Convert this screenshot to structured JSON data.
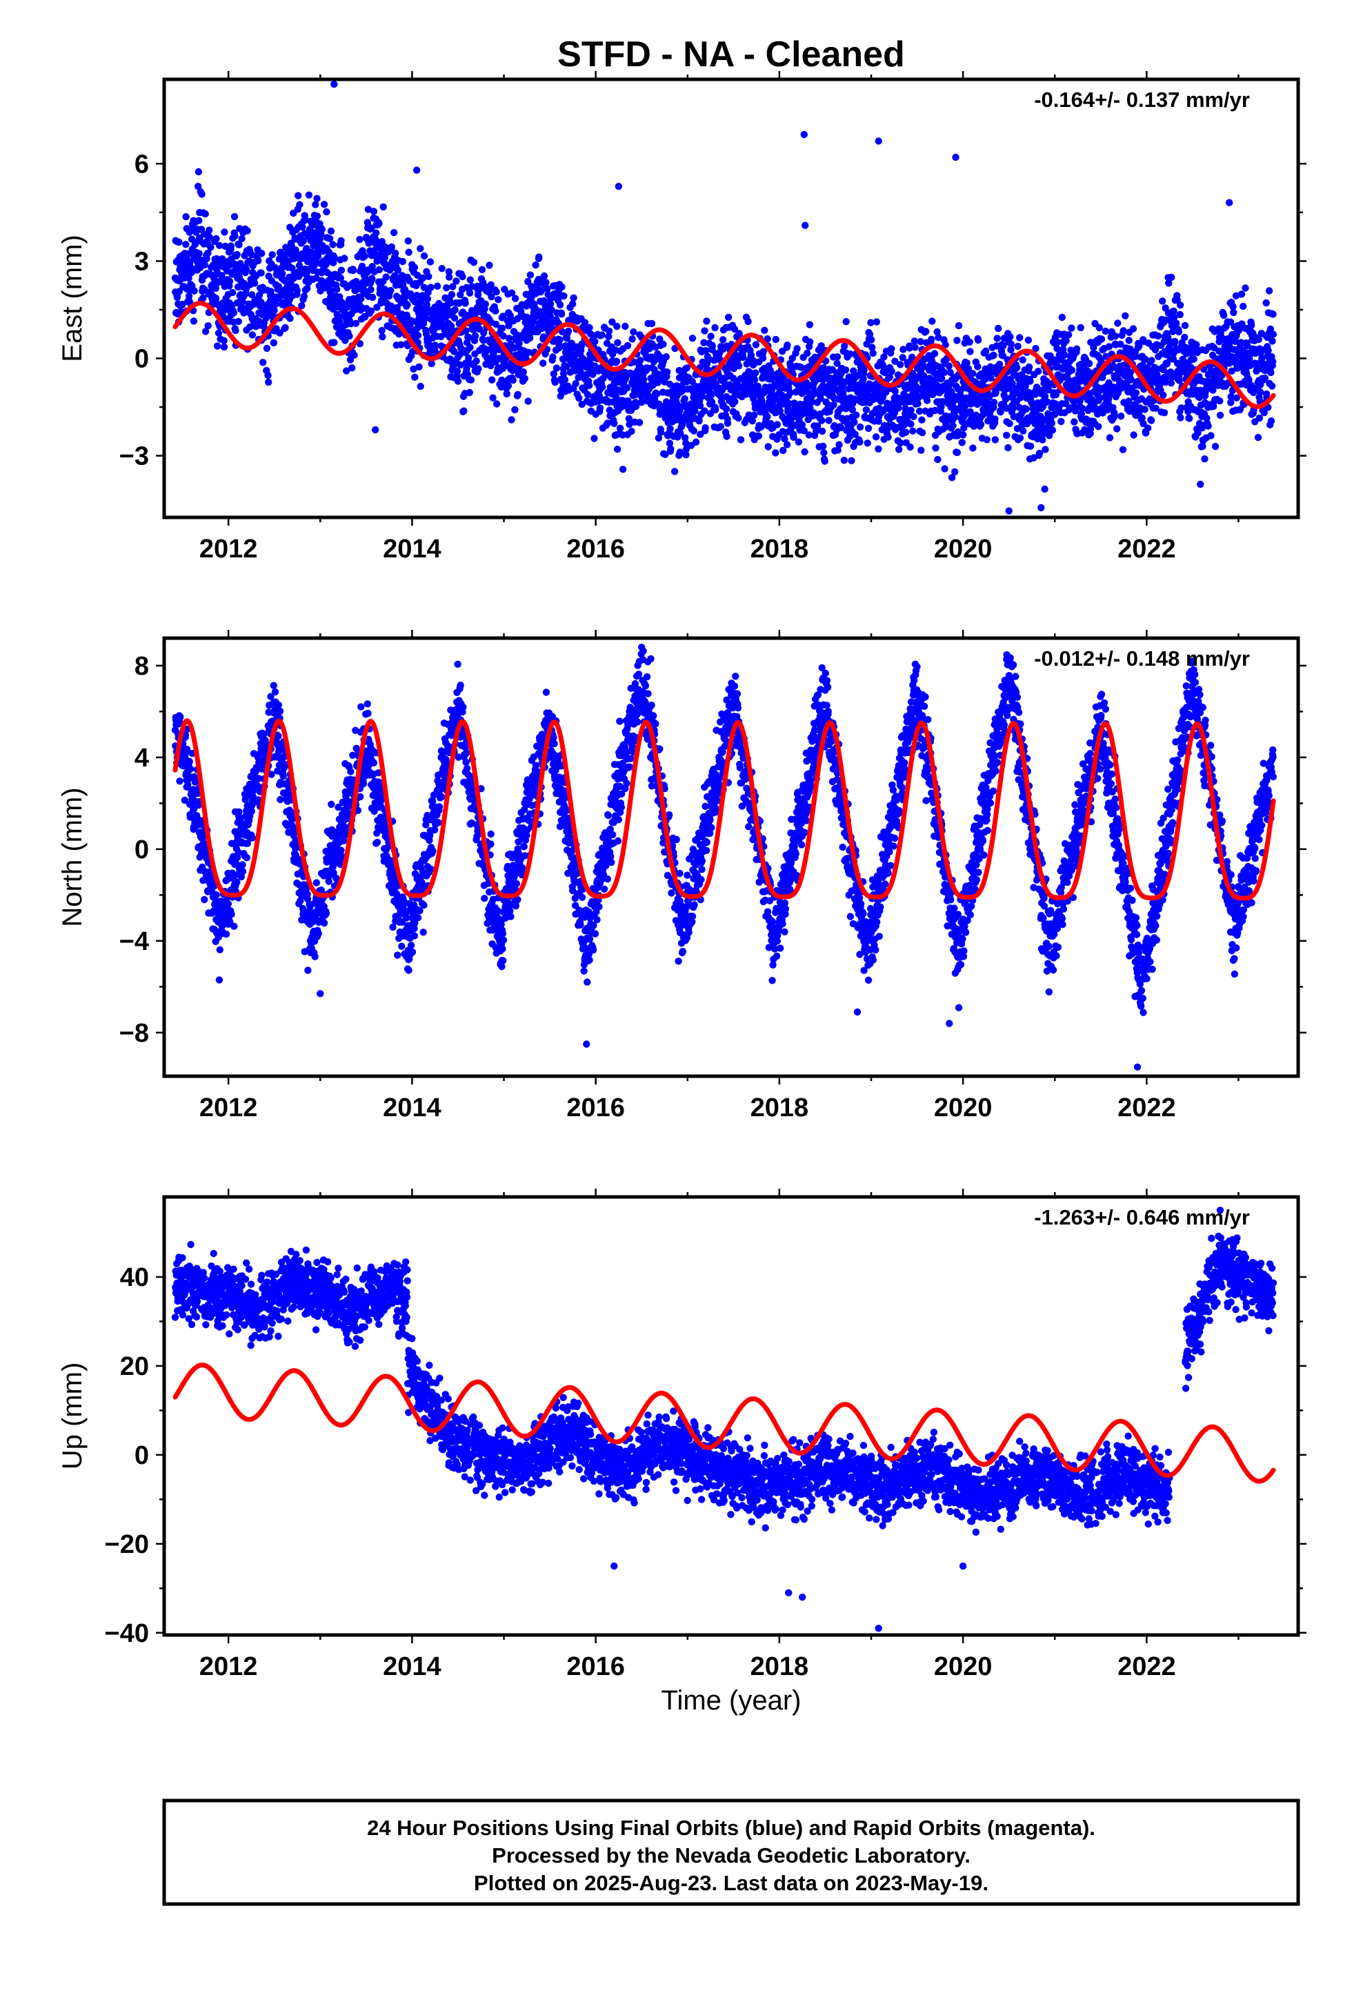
{
  "title": "STFD  - NA - Cleaned",
  "x_axis_label": "Time (year)",
  "footer": {
    "line1": "24 Hour Positions Using Final Orbits (blue) and Rapid Orbits (magenta).",
    "line2": "Processed by the Nevada Geodetic Laboratory.",
    "line3": "Plotted on 2025-Aug-23. Last data on 2023-May-19."
  },
  "colors": {
    "points": "#0000ff",
    "fit": "#ff0000",
    "frame": "#000000",
    "background": "#ffffff"
  },
  "chart_data": [
    {
      "type": "scatter",
      "component": "East",
      "ylabel": "East (mm)",
      "rate_text": "-0.164+/- 0.137 mm/yr",
      "xlim": [
        2011.3,
        2023.65
      ],
      "ylim": [
        -4.9,
        8.6
      ],
      "x_ticks": [
        2012,
        2014,
        2016,
        2018,
        2020,
        2022
      ],
      "y_ticks": [
        -3,
        0,
        3,
        6
      ],
      "y_tick_labels": [
        "−3",
        "0",
        "3",
        "6"
      ],
      "series": [
        {
          "kind": "points",
          "samples": [
            [
              2011.5,
              2.4
            ],
            [
              2011.7,
              3.2
            ],
            [
              2011.9,
              1.8
            ],
            [
              2012.1,
              2.6
            ],
            [
              2012.4,
              1.4
            ],
            [
              2012.7,
              2.9
            ],
            [
              2013.0,
              3.4
            ],
            [
              2013.3,
              1.2
            ],
            [
              2013.6,
              3.2
            ],
            [
              2013.9,
              1.6
            ],
            [
              2014.2,
              1.2
            ],
            [
              2014.5,
              0.6
            ],
            [
              2014.8,
              1.3
            ],
            [
              2015.1,
              0.1
            ],
            [
              2015.4,
              1.6
            ],
            [
              2015.7,
              0.2
            ],
            [
              2016.0,
              -0.3
            ],
            [
              2016.3,
              -1.0
            ],
            [
              2016.6,
              -0.4
            ],
            [
              2016.9,
              -1.6
            ],
            [
              2017.2,
              -0.6
            ],
            [
              2017.5,
              -0.4
            ],
            [
              2017.8,
              -1.0
            ],
            [
              2018.1,
              -1.4
            ],
            [
              2018.4,
              -0.9
            ],
            [
              2018.7,
              -1.2
            ],
            [
              2019.0,
              -0.8
            ],
            [
              2019.3,
              -1.3
            ],
            [
              2019.6,
              -0.7
            ],
            [
              2019.9,
              -1.5
            ],
            [
              2020.2,
              -1.0
            ],
            [
              2020.5,
              -0.7
            ],
            [
              2020.8,
              -1.8
            ],
            [
              2021.1,
              -0.6
            ],
            [
              2021.4,
              -1.1
            ],
            [
              2021.7,
              -0.3
            ],
            [
              2022.0,
              -0.9
            ],
            [
              2022.3,
              0.6
            ],
            [
              2022.6,
              -1.6
            ],
            [
              2022.9,
              0.4
            ],
            [
              2023.2,
              -0.5
            ],
            [
              2023.4,
              0.3
            ]
          ],
          "outliers": [
            [
              2013.15,
              8.5
            ],
            [
              2018.27,
              6.9
            ],
            [
              2019.08,
              6.7
            ],
            [
              2019.92,
              6.2
            ],
            [
              2018.28,
              4.1
            ],
            [
              2022.9,
              4.8
            ],
            [
              2020.85,
              -4.6
            ],
            [
              2020.5,
              -4.7
            ],
            [
              2014.05,
              5.8
            ],
            [
              2016.25,
              5.3
            ],
            [
              2013.6,
              -2.2
            ]
          ],
          "spread": 1.15,
          "annual_amp": 0.4
        },
        {
          "kind": "fit",
          "model": "offset + rate*(t-2011.4) + amp*sin(2*pi*(t-t0))",
          "offset": 1.1,
          "rate": -0.164,
          "annual_amp": 0.65,
          "annual_peak": 0.7
        }
      ]
    },
    {
      "type": "scatter",
      "component": "North",
      "ylabel": "North (mm)",
      "rate_text": "-0.012+/- 0.148 mm/yr",
      "xlim": [
        2011.3,
        2023.65
      ],
      "ylim": [
        -9.9,
        9.2
      ],
      "x_ticks": [
        2012,
        2014,
        2016,
        2018,
        2020,
        2022
      ],
      "y_ticks": [
        -8,
        -4,
        0,
        4,
        8
      ],
      "y_tick_labels": [
        "−8",
        "−4",
        "0",
        "4",
        "8"
      ],
      "series": [
        {
          "kind": "points",
          "samples": [
            [
              2011.5,
              4.6
            ],
            [
              2011.9,
              -3.5
            ],
            [
              2012.5,
              5.8
            ],
            [
              2012.9,
              -3.8
            ],
            [
              2013.5,
              4.6
            ],
            [
              2013.95,
              -4.2
            ],
            [
              2014.5,
              6.2
            ],
            [
              2014.95,
              -3.9
            ],
            [
              2015.5,
              5.5
            ],
            [
              2015.9,
              -4.3
            ],
            [
              2016.5,
              7.5
            ],
            [
              2016.95,
              -3.6
            ],
            [
              2017.5,
              6.2
            ],
            [
              2017.95,
              -3.8
            ],
            [
              2018.5,
              6.4
            ],
            [
              2018.95,
              -4.5
            ],
            [
              2019.5,
              6.8
            ],
            [
              2019.95,
              -4.5
            ],
            [
              2020.5,
              7.5
            ],
            [
              2020.95,
              -4.4
            ],
            [
              2021.5,
              5.2
            ],
            [
              2021.95,
              -6.0
            ],
            [
              2022.5,
              7.4
            ],
            [
              2022.95,
              -3.5
            ],
            [
              2023.35,
              3.2
            ]
          ],
          "outliers": [
            [
              2016.5,
              8.8
            ],
            [
              2015.9,
              -8.5
            ],
            [
              2021.9,
              -9.5
            ],
            [
              2011.9,
              -5.7
            ],
            [
              2013.0,
              -6.3
            ],
            [
              2018.85,
              -7.1
            ],
            [
              2019.85,
              -7.6
            ],
            [
              2016.6,
              8.3
            ],
            [
              2022.5,
              8.2
            ]
          ],
          "spread": 1.2,
          "annual_amp": 3.9
        },
        {
          "kind": "fit",
          "model": "offset + annual + semiannual",
          "offset": 0.9,
          "rate": -0.012,
          "annual_amp": 3.8,
          "annual_peak": 0.55,
          "semiannual_amp": 0.9
        }
      ]
    },
    {
      "type": "scatter",
      "component": "Up",
      "ylabel": "Up (mm)",
      "rate_text": "-1.263+/- 0.646 mm/yr",
      "xlim": [
        2011.3,
        2023.65
      ],
      "ylim": [
        -40.5,
        58.0
      ],
      "x_ticks": [
        2012,
        2014,
        2016,
        2018,
        2020,
        2022
      ],
      "y_ticks": [
        -40,
        -20,
        0,
        20,
        40
      ],
      "y_tick_labels": [
        "−40",
        "−20",
        "0",
        "20",
        "40"
      ],
      "series": [
        {
          "kind": "points",
          "segments": [
            {
              "start": 2011.4,
              "end": 2013.95,
              "level": 36
            },
            {
              "start": 2013.95,
              "end": 2022.4,
              "level_start": 3.5,
              "level_end": -7.0
            },
            {
              "start": 2022.4,
              "end": 2023.4,
              "level": 40
            }
          ],
          "samples": [
            [
              2011.7,
              38
            ],
            [
              2012.3,
              30
            ],
            [
              2012.75,
              43
            ],
            [
              2013.3,
              28
            ],
            [
              2013.8,
              40
            ],
            [
              2014.5,
              2
            ],
            [
              2015.2,
              -6
            ],
            [
              2015.7,
              8
            ],
            [
              2016.3,
              -10
            ],
            [
              2016.7,
              7
            ],
            [
              2017.3,
              -5
            ],
            [
              2018.0,
              -12
            ],
            [
              2018.5,
              -3
            ],
            [
              2019.1,
              -12
            ],
            [
              2019.6,
              -2
            ],
            [
              2020.2,
              -14
            ],
            [
              2020.8,
              -4
            ],
            [
              2021.3,
              -12
            ],
            [
              2021.8,
              -2
            ],
            [
              2022.2,
              -10
            ],
            [
              2022.8,
              46
            ],
            [
              2023.3,
              33
            ]
          ],
          "outliers": [
            [
              2019.08,
              -39
            ],
            [
              2016.2,
              -25
            ],
            [
              2018.1,
              -31
            ],
            [
              2018.25,
              -32
            ],
            [
              2022.8,
              55
            ],
            [
              2020.0,
              -25
            ]
          ],
          "spread": 4.8,
          "annual_amp": 4.0
        },
        {
          "kind": "fit",
          "model": "offset + rate*(t-2011.4) + amp*sin(2*pi*(t-t0))",
          "offset": 14.8,
          "rate": -1.263,
          "annual_amp": 5.8,
          "annual_peak": 0.72
        }
      ]
    }
  ]
}
